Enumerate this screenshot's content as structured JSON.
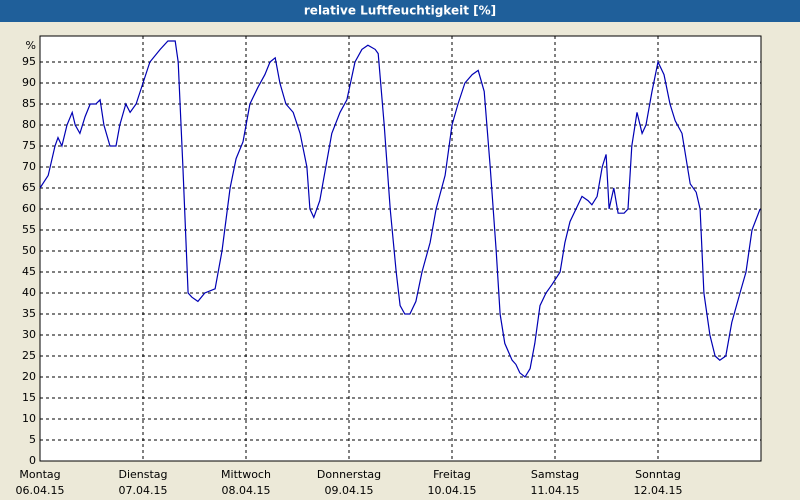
{
  "chart_data": {
    "type": "line",
    "title": "relative Luftfeuchtigkeit [%]",
    "y_unit": "%",
    "x": [
      0,
      1.9,
      3.5,
      4.2,
      5.1,
      6.3,
      7.5,
      8.2,
      9.3,
      10.5,
      11.7,
      13.0,
      14.0,
      14.9,
      16.3,
      17.7,
      18.6,
      20.0,
      21.0,
      22.4,
      24.0,
      25.6,
      28.0,
      29.8,
      31.5,
      32.2,
      33.3,
      34.5,
      35.4,
      36.8,
      38.4,
      40.8,
      42.4,
      44.3,
      45.7,
      47.3,
      48.9,
      50.8,
      52.4,
      53.6,
      54.8,
      55.9,
      57.3,
      59.0,
      60.6,
      62.2,
      62.9,
      63.8,
      65.2,
      66.6,
      68.0,
      69.9,
      71.5,
      73.4,
      75.0,
      76.4,
      78.1,
      78.8,
      80.2,
      81.6,
      83.0,
      83.9,
      85.0,
      86.2,
      87.6,
      89.0,
      90.9,
      92.3,
      94.4,
      96.0,
      97.4,
      99.0,
      100.7,
      102.1,
      103.5,
      104.9,
      106.3,
      107.2,
      108.3,
      110.0,
      110.9,
      111.8,
      113.0,
      114.2,
      115.3,
      116.5,
      117.9,
      119.3,
      121.2,
      122.3,
      123.5,
      124.9,
      126.3,
      127.7,
      128.6,
      129.8,
      131.0,
      131.9,
      132.6,
      133.7,
      134.7,
      136.1,
      137.0,
      137.9,
      139.1,
      140.3,
      141.2,
      142.6,
      144.0,
      145.4,
      146.8,
      148.0,
      149.6,
      151.5,
      152.9,
      153.8,
      154.7,
      156.1,
      157.3,
      158.4,
      159.8,
      161.2,
      163.1,
      164.5,
      165.9,
      167.8
    ],
    "values": [
      65,
      68,
      75,
      77,
      75,
      80,
      83,
      80,
      78,
      82,
      85,
      85,
      86,
      80,
      75,
      75,
      80,
      85,
      83,
      85,
      90,
      95,
      98,
      100,
      100,
      95,
      70,
      40,
      39,
      38,
      40,
      41,
      50,
      65,
      72,
      76,
      85,
      89,
      92,
      95,
      96,
      90,
      85,
      83,
      78,
      70,
      60,
      58,
      62,
      70,
      78,
      83,
      86,
      95,
      98,
      99,
      98,
      97,
      80,
      60,
      45,
      37,
      35,
      35,
      38,
      45,
      52,
      60,
      68,
      80,
      85,
      90,
      92,
      93,
      88,
      70,
      50,
      35,
      28,
      24,
      23,
      21,
      20,
      22,
      28,
      37,
      40,
      42,
      45,
      52,
      57,
      60,
      63,
      62,
      61,
      63,
      70,
      73,
      60,
      65,
      59,
      59,
      60,
      75,
      83,
      78,
      80,
      88,
      95,
      92,
      85,
      81,
      78,
      66,
      64,
      60,
      40,
      30,
      25,
      24,
      25,
      33,
      40,
      45,
      55,
      60
    ],
    "color": "#0000b4",
    "xlim": [
      0,
      168
    ],
    "xticks": [
      {
        "value": 0,
        "label": "Montag"
      },
      {
        "value": 24,
        "label": "Dienstag"
      },
      {
        "value": 48,
        "label": "Mittwoch"
      },
      {
        "value": 72,
        "label": "Donnerstag"
      },
      {
        "value": 96,
        "label": "Freitag"
      },
      {
        "value": 120,
        "label": "Samstag"
      },
      {
        "value": 144,
        "label": "Sonntag"
      }
    ],
    "dates": [
      "06.04.15",
      "07.04.15",
      "08.04.15",
      "09.04.15",
      "10.04.15",
      "11.04.15",
      "12.04.15"
    ],
    "ylim": [
      0,
      100
    ],
    "yticks": [
      0,
      5,
      10,
      15,
      20,
      25,
      30,
      35,
      40,
      45,
      50,
      55,
      60,
      65,
      70,
      75,
      80,
      85,
      90,
      95
    ],
    "grid": true
  }
}
